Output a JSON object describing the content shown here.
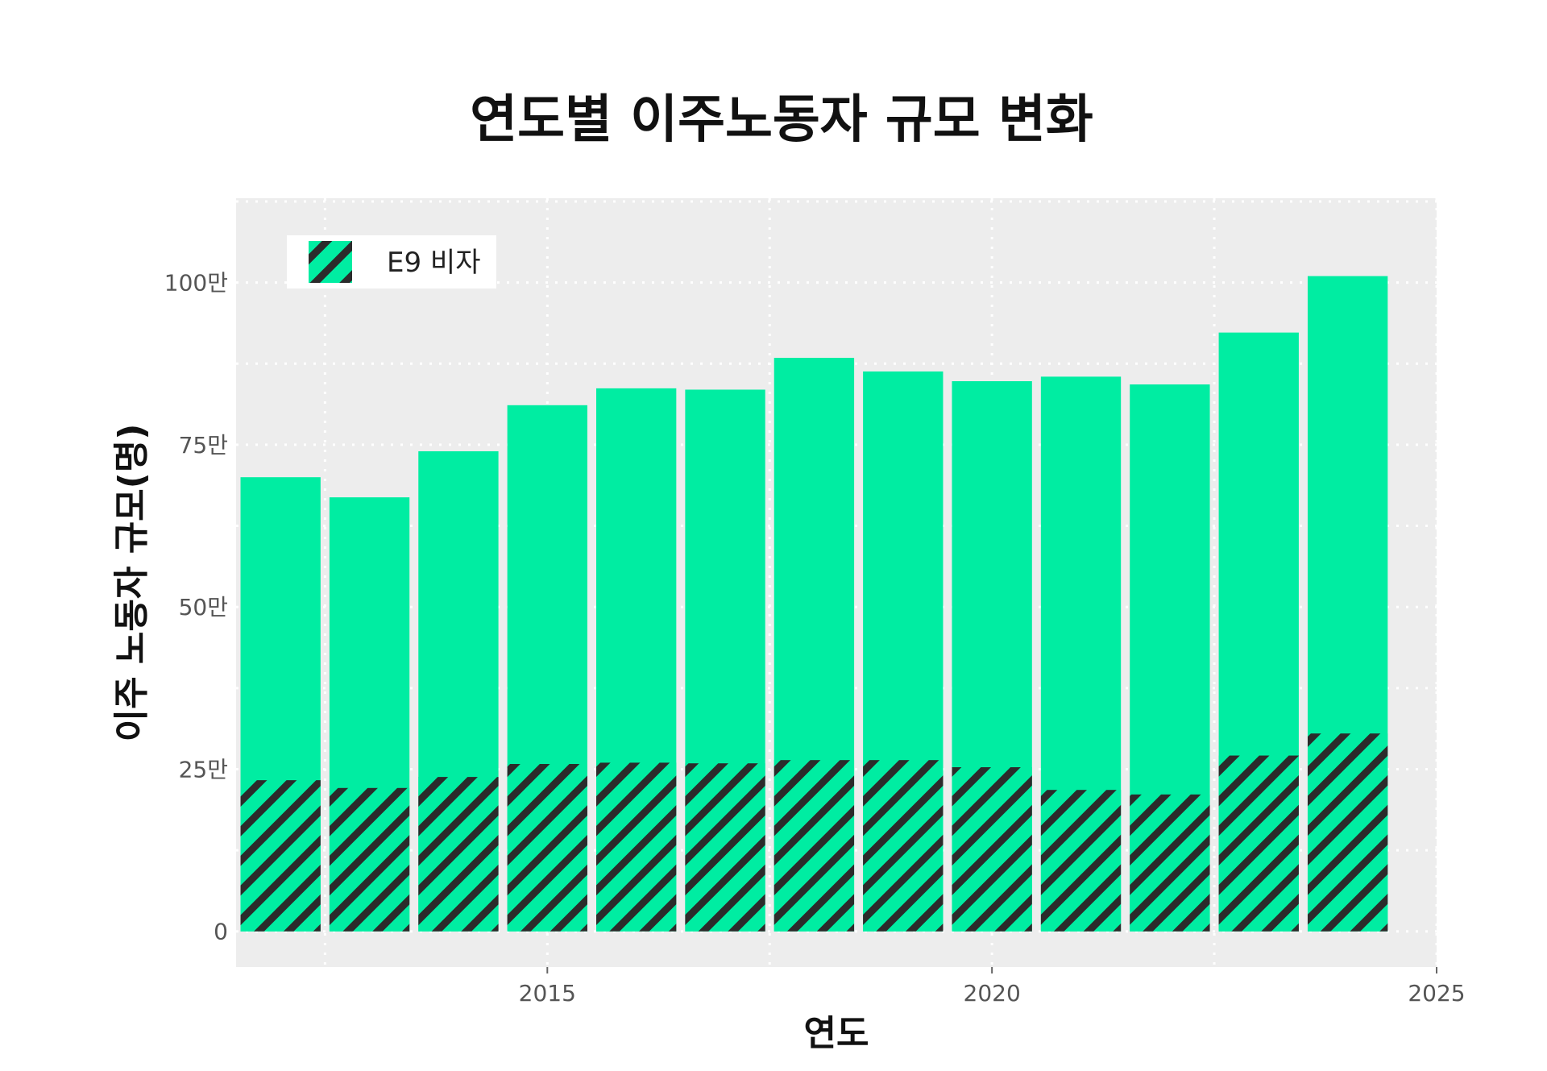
{
  "chart_data": {
    "type": "bar",
    "title": "연도별 이주노동자 규모 변화",
    "xlabel": "연도",
    "ylabel": "이주 노동자 규모(명)",
    "x": [
      2012,
      2013,
      2014,
      2015,
      2016,
      2017,
      2018,
      2019,
      2020,
      2021,
      2022,
      2023,
      2024
    ],
    "series": [
      {
        "name": "",
        "values": [
          700000,
          669000,
          740000,
          811000,
          837000,
          835000,
          884000,
          863000,
          848000,
          855000,
          843000,
          923000,
          1010000
        ]
      },
      {
        "name": "E9 비자",
        "values": [
          233000,
          221000,
          238000,
          258000,
          260000,
          259000,
          264000,
          264000,
          253000,
          218000,
          211000,
          271000,
          305000
        ]
      }
    ],
    "xlim": [
      2011.5,
      2025
    ],
    "ylim": [
      -55000,
      1130000
    ],
    "x_ticks": [
      2015,
      2020,
      2025
    ],
    "x_tick_labels": [
      "2015",
      "2020",
      "2025"
    ],
    "y_ticks": [
      0,
      250000,
      500000,
      750000,
      1000000
    ],
    "y_tick_labels": [
      "0",
      "25만",
      "50만",
      "75만",
      "100만"
    ],
    "grid": true,
    "legend": "top-left",
    "colors": {
      "bar": "#00eda2",
      "hatch": "#2b2b2b",
      "panel": "#ededed",
      "grid": "#ffffff"
    }
  }
}
